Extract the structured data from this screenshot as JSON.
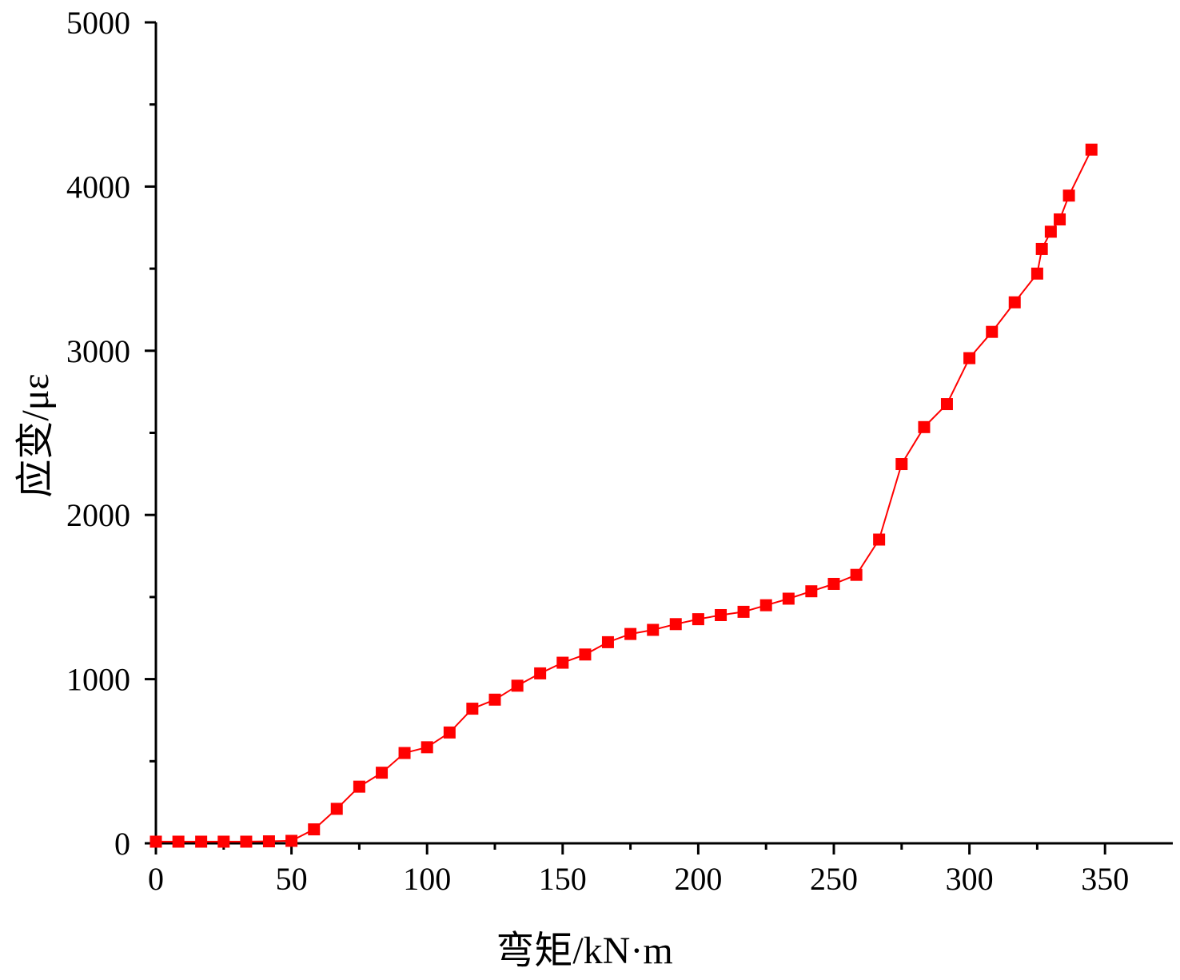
{
  "chart_data": {
    "type": "line",
    "title": "",
    "xlabel": "弯矩/kN·m",
    "ylabel": "应变/με",
    "xlim": [
      0,
      375
    ],
    "ylim": [
      0,
      5000
    ],
    "x_ticks": [
      "0",
      "50",
      "100",
      "150",
      "200",
      "250",
      "300",
      "350"
    ],
    "y_ticks": [
      "0",
      "1000",
      "2000",
      "3000",
      "4000",
      "5000"
    ],
    "grid": false,
    "legend": "none",
    "series": [
      {
        "color": "#ff0000",
        "marker": "square",
        "points": [
          [
            0,
            10
          ],
          [
            8.3,
            10
          ],
          [
            16.7,
            10
          ],
          [
            25,
            10
          ],
          [
            33.3,
            10
          ],
          [
            41.7,
            12
          ],
          [
            50,
            15
          ],
          [
            58.3,
            85
          ],
          [
            66.7,
            210
          ],
          [
            75,
            345
          ],
          [
            83.3,
            430
          ],
          [
            91.7,
            550
          ],
          [
            100,
            585
          ],
          [
            108.3,
            675
          ],
          [
            116.7,
            820
          ],
          [
            125,
            875
          ],
          [
            133.3,
            960
          ],
          [
            141.7,
            1035
          ],
          [
            150,
            1100
          ],
          [
            158.3,
            1150
          ],
          [
            166.7,
            1225
          ],
          [
            175,
            1275
          ],
          [
            183.3,
            1300
          ],
          [
            191.7,
            1335
          ],
          [
            200,
            1365
          ],
          [
            208.3,
            1390
          ],
          [
            216.7,
            1410
          ],
          [
            225,
            1450
          ],
          [
            233.3,
            1490
          ],
          [
            241.7,
            1535
          ],
          [
            250,
            1580
          ],
          [
            258.3,
            1635
          ],
          [
            266.7,
            1850
          ],
          [
            275,
            2310
          ],
          [
            283.3,
            2535
          ],
          [
            291.7,
            2675
          ],
          [
            300,
            2955
          ],
          [
            308.3,
            3115
          ],
          [
            316.7,
            3295
          ],
          [
            325,
            3470
          ],
          [
            326.7,
            3620
          ],
          [
            330,
            3725
          ],
          [
            333.3,
            3800
          ],
          [
            336.7,
            3945
          ],
          [
            345,
            4225
          ]
        ]
      }
    ]
  }
}
